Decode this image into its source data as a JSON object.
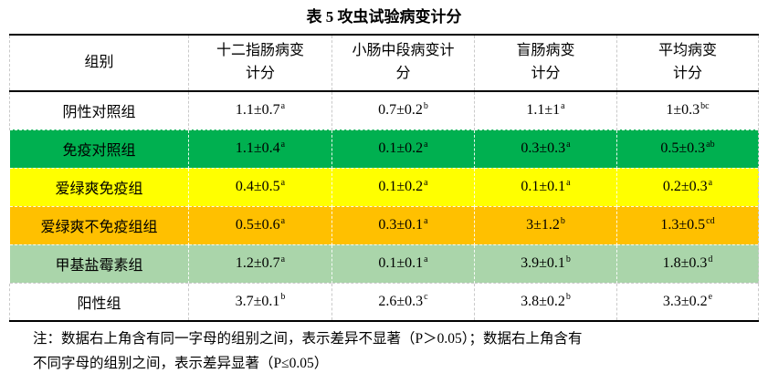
{
  "title": "表 5 攻虫试验病变计分",
  "table": {
    "headers": [
      "组别",
      "十二指肠病变\n计分",
      "小肠中段病变计\n分",
      "盲肠病变\n计分",
      "平均病变\n计分"
    ],
    "rows": [
      {
        "group": "阴性对照组",
        "bg": "#FFFFFF",
        "values": [
          {
            "v": "1.1±0.7",
            "sup": "a"
          },
          {
            "v": "0.7±0.2",
            "sup": "b"
          },
          {
            "v": "1.1±1",
            "sup": "a"
          },
          {
            "v": "1±0.3",
            "sup": "bc"
          }
        ]
      },
      {
        "group": "免疫对照组",
        "bg": "#00B050",
        "values": [
          {
            "v": "1.1±0.4",
            "sup": "a"
          },
          {
            "v": "0.1±0.2",
            "sup": "a"
          },
          {
            "v": "0.3±0.3",
            "sup": "a"
          },
          {
            "v": "0.5±0.3",
            "sup": "ab"
          }
        ]
      },
      {
        "group": "爱绿爽免疫组",
        "bg": "#FFFF00",
        "values": [
          {
            "v": "0.4±0.5",
            "sup": "a"
          },
          {
            "v": "0.1±0.2",
            "sup": "a"
          },
          {
            "v": "0.1±0.1",
            "sup": "a"
          },
          {
            "v": "0.2±0.3",
            "sup": "a"
          }
        ]
      },
      {
        "group": "爱绿爽不免疫组组",
        "bg": "#FFC000",
        "values": [
          {
            "v": "0.5±0.6",
            "sup": "a"
          },
          {
            "v": "0.3±0.1",
            "sup": "a"
          },
          {
            "v": "3±1.2",
            "sup": "b"
          },
          {
            "v": "1.3±0.5",
            "sup": "cd"
          }
        ]
      },
      {
        "group": "甲基盐霉素组",
        "bg": "#AAD5AA",
        "values": [
          {
            "v": "1.2±0.7",
            "sup": "a"
          },
          {
            "v": "0.1±0.1",
            "sup": "a"
          },
          {
            "v": "3.9±0.1",
            "sup": "b"
          },
          {
            "v": "1.8±0.3",
            "sup": "d"
          }
        ]
      },
      {
        "group": "阳性组",
        "bg": "#FFFFFF",
        "values": [
          {
            "v": "3.7±0.1",
            "sup": "b"
          },
          {
            "v": "2.6±0.3",
            "sup": "c"
          },
          {
            "v": "3.8±0.2",
            "sup": "b"
          },
          {
            "v": "3.3±0.2",
            "sup": "e"
          }
        ]
      }
    ]
  },
  "note": {
    "line1": "注：数据右上角含有同一字母的组别之间，表示差异不显著（P＞0.05）；数据右上角含有",
    "line2": "不同字母的组别之间，表示差异显著（P≤0.05）"
  },
  "colors": {
    "highlight_green": "#00B050",
    "highlight_yellow": "#FFFF00",
    "highlight_orange": "#FFC000",
    "highlight_light_green": "#AAD5AA",
    "border_solid": "#000000",
    "border_dashed": "#C9C9C9",
    "text": "#000000"
  }
}
